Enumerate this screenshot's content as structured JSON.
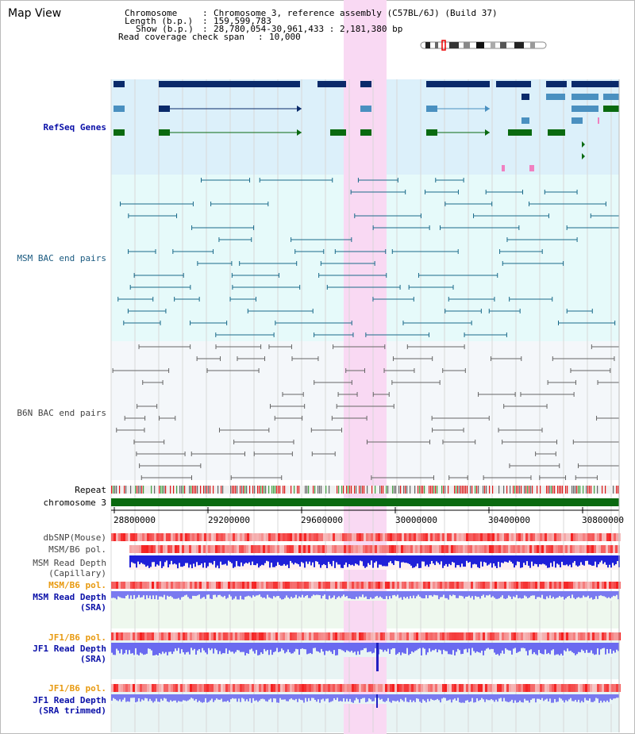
{
  "page": {
    "title": "Map View"
  },
  "info": {
    "chromosome_label": "Chromosome",
    "chromosome_value": "Chromosome 3, reference assembly (C57BL/6J) (Build 37)",
    "length_label": "Length (b.p.)",
    "length_value": "159,599,783",
    "show_label": "Show (b.p.)",
    "show_value": "28,780,054-30,961,433 : 2,181,380 bp",
    "coverage_label": "Read coverage check span",
    "coverage_value": "10,000"
  },
  "tracks": {
    "refseq": "RefSeq Genes",
    "msm_bac": "MSM BAC end pairs",
    "b6n_bac": "B6N BAC end pairs",
    "repeat": "Repeat",
    "chromosome": "chromosome 3",
    "dbsnp": "dbSNP(Mouse)",
    "msm_b6_pol_1": "MSM/B6 pol.",
    "msm_depth_cap_1": "MSM Read Depth",
    "msm_depth_cap_2": "(Capillary)",
    "msm_b6_pol_2": "MSM/B6 pol.",
    "msm_depth_sra_1": "MSM Read Depth",
    "msm_depth_sra_2": "(SRA)",
    "jf1_b6_pol_1": "JF1/B6 pol.",
    "jf1_depth_1": "JF1 Read Depth",
    "jf1_depth_2": "(SRA)",
    "jf1_b6_pol_2": "JF1/B6 pol.",
    "jf1_trim_1": "JF1 Read Depth",
    "jf1_trim_2": "(SRA trimmed)"
  },
  "axis": {
    "ticks": [
      "28800000",
      "29200000",
      "29600000",
      "30000000",
      "30400000",
      "30800000"
    ]
  },
  "colors": {
    "refseq_bg": "#dcf0fa",
    "msm_bg": "#e6fafa",
    "b6n_bg": "#f4f7fa",
    "highlight": "#f9d9f3",
    "gene_dark": "#0a2a6a",
    "gene_mid": "#4a90c0",
    "gene_green": "#0a6a10",
    "msm_line": "#1a6a8a",
    "b6n_line": "#666666",
    "chromosome_bar": "#0a6a10",
    "depth_blue": "#3838e8",
    "pol_red": "#f04848"
  }
}
